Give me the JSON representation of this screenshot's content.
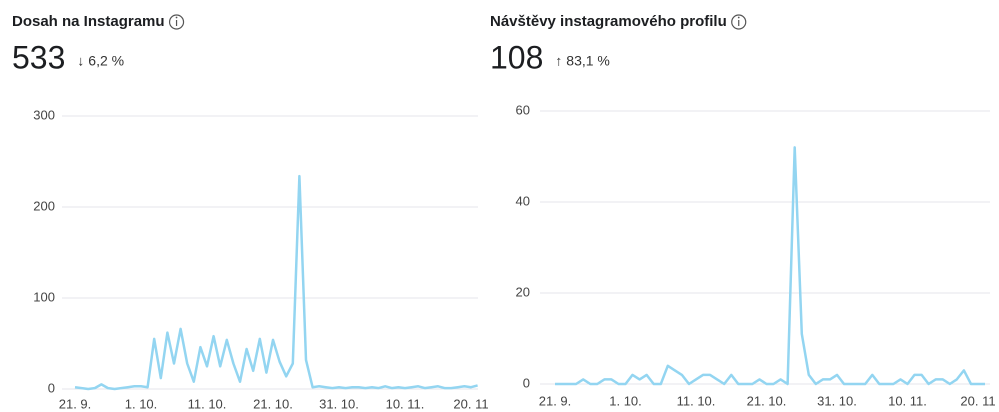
{
  "chart_data": [
    {
      "type": "line",
      "title": "Dosah na Instagramu",
      "total": "533",
      "change": "↓ 6,2 %",
      "change_color": "#8b3a3a",
      "color": "#93d5f1",
      "categories": [
        "21. 9.",
        null,
        null,
        null,
        null,
        null,
        null,
        null,
        null,
        null,
        "1. 10.",
        null,
        null,
        null,
        null,
        null,
        null,
        null,
        null,
        null,
        "11. 10.",
        null,
        null,
        null,
        null,
        null,
        null,
        null,
        null,
        null,
        "21. 10.",
        null,
        null,
        null,
        null,
        null,
        null,
        null,
        null,
        null,
        "31. 10.",
        null,
        null,
        null,
        null,
        null,
        null,
        null,
        null,
        null,
        "10. 11.",
        null,
        null,
        null,
        null,
        null,
        null,
        null,
        null,
        null,
        "20. 11",
        null
      ],
      "values": [
        2,
        1,
        0,
        1,
        5,
        1,
        0,
        1,
        2,
        3,
        3,
        2,
        55,
        12,
        62,
        28,
        66,
        28,
        8,
        46,
        25,
        58,
        25,
        54,
        28,
        8,
        44,
        20,
        55,
        18,
        54,
        30,
        14,
        28,
        234,
        32,
        2,
        3,
        2,
        1,
        2,
        1,
        2,
        2,
        1,
        2,
        1,
        3,
        1,
        2,
        1,
        2,
        3,
        1,
        2,
        3,
        1,
        1,
        2,
        3,
        2,
        4
      ],
      "ylim": [
        0,
        300
      ],
      "yticks": [
        0,
        100,
        200,
        300
      ],
      "grid": true
    },
    {
      "type": "line",
      "title": "Návštěvy instagramového profilu",
      "total": "108",
      "change": "↑ 83,1 %",
      "change_color": "#2e8b57",
      "color": "#93d5f1",
      "categories": [
        "21. 9.",
        null,
        null,
        null,
        null,
        null,
        null,
        null,
        null,
        null,
        "1. 10.",
        null,
        null,
        null,
        null,
        null,
        null,
        null,
        null,
        null,
        "11. 10.",
        null,
        null,
        null,
        null,
        null,
        null,
        null,
        null,
        null,
        "21. 10.",
        null,
        null,
        null,
        null,
        null,
        null,
        null,
        null,
        null,
        "31. 10.",
        null,
        null,
        null,
        null,
        null,
        null,
        null,
        null,
        null,
        "10. 11.",
        null,
        null,
        null,
        null,
        null,
        null,
        null,
        null,
        null,
        "20. 11",
        null
      ],
      "values": [
        0,
        0,
        0,
        0,
        1,
        0,
        0,
        1,
        1,
        0,
        0,
        2,
        1,
        2,
        0,
        0,
        4,
        3,
        2,
        0,
        1,
        2,
        2,
        1,
        0,
        2,
        0,
        0,
        0,
        1,
        0,
        0,
        1,
        0,
        52,
        11,
        2,
        0,
        1,
        1,
        2,
        0,
        0,
        0,
        0,
        2,
        0,
        0,
        0,
        1,
        0,
        2,
        2,
        0,
        1,
        1,
        0,
        1,
        3,
        0,
        0,
        0
      ],
      "ylim": [
        0,
        60
      ],
      "yticks": [
        0,
        20,
        40,
        60
      ],
      "grid": true
    }
  ]
}
